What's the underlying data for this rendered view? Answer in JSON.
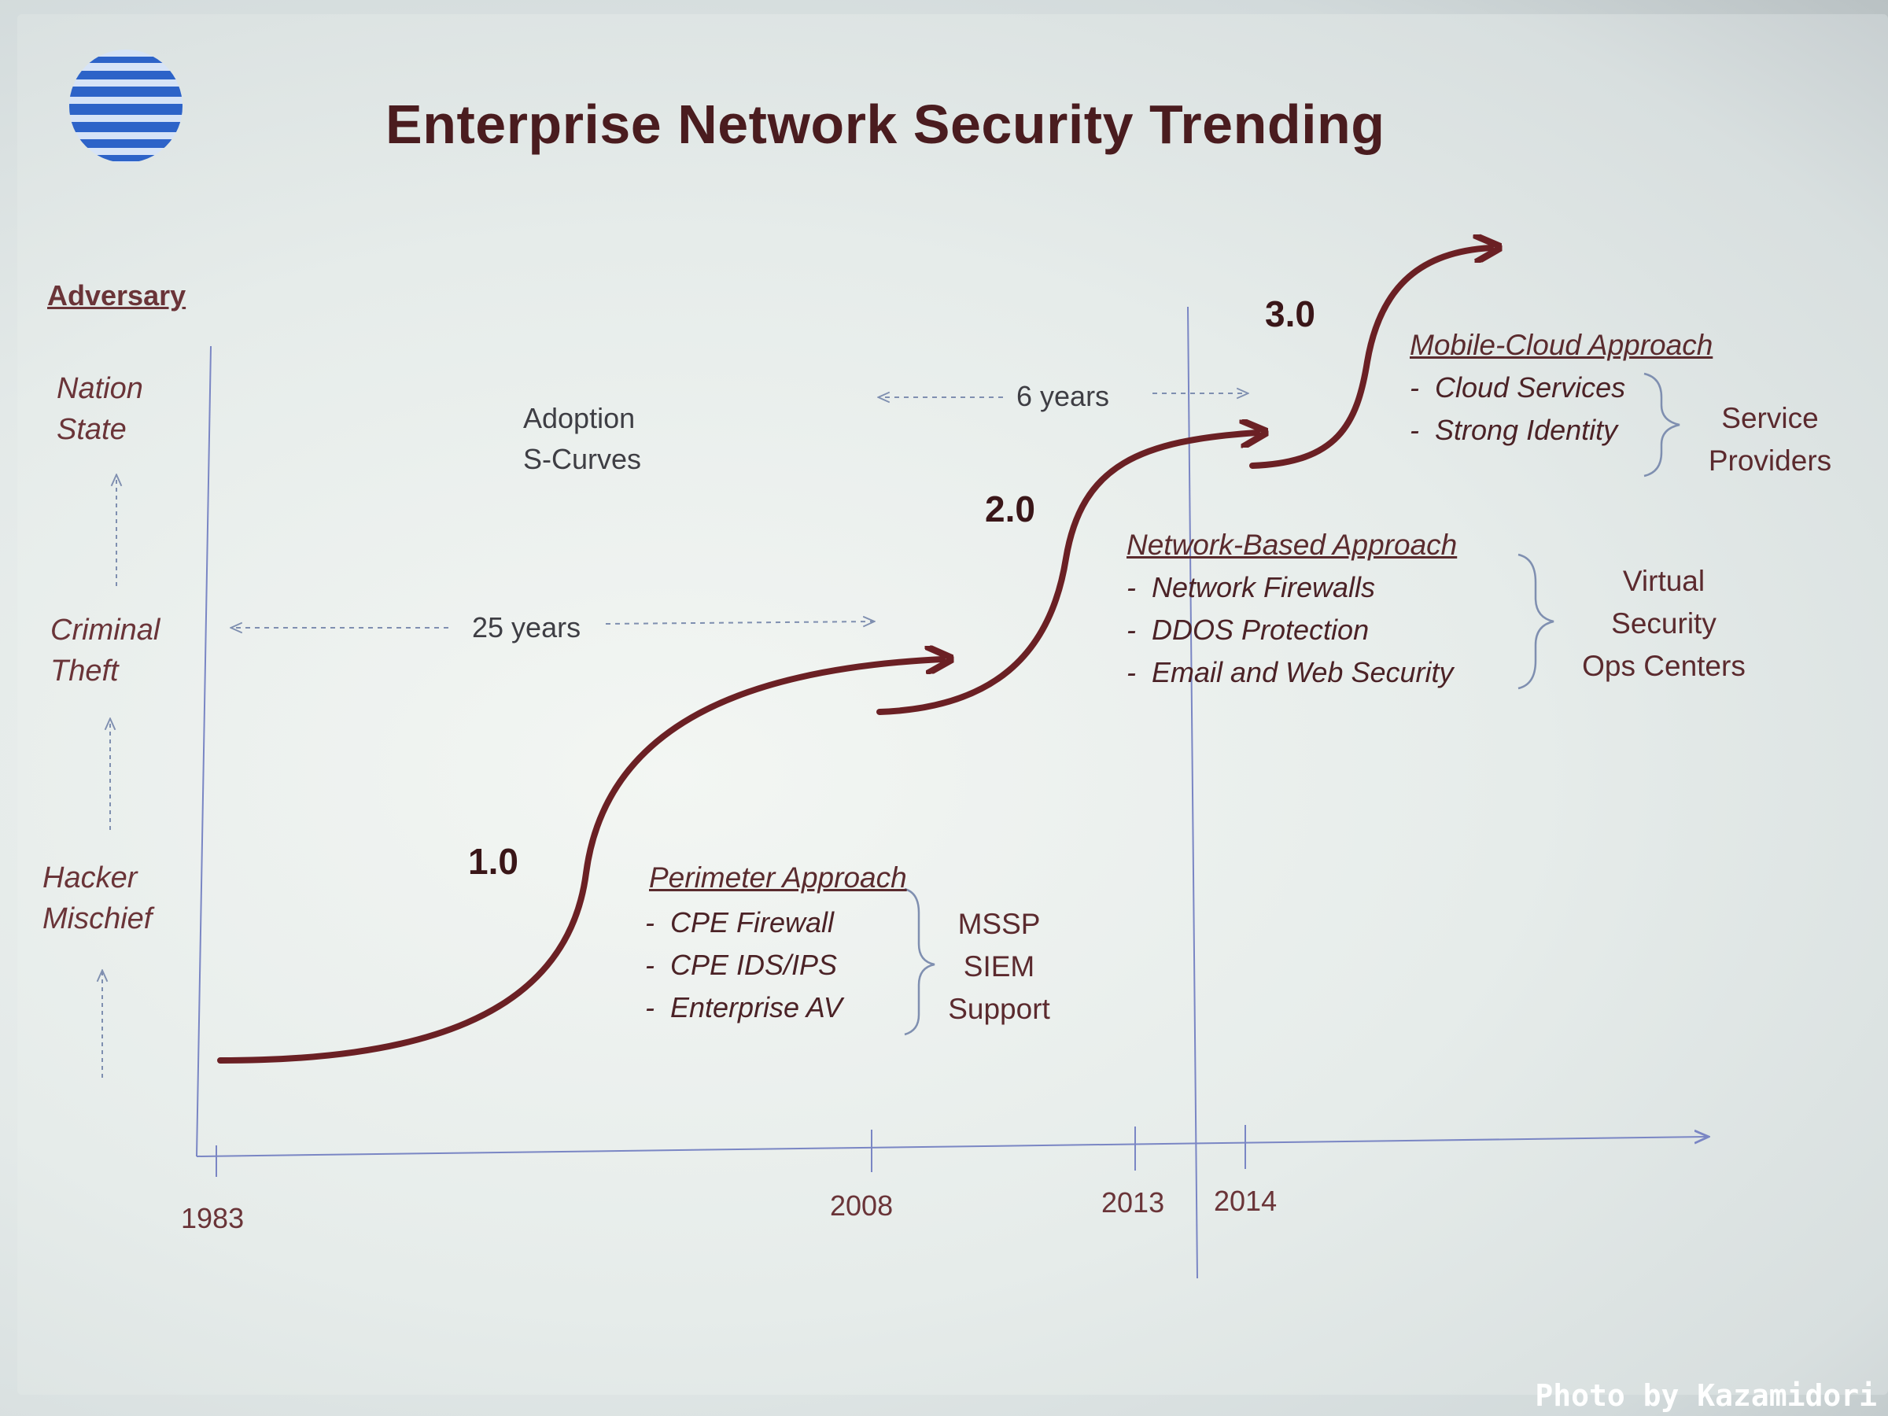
{
  "title": "Enterprise Network Security Trending",
  "adversary": {
    "heading": "Adversary",
    "levels": [
      "Nation\nState",
      "Criminal\nTheft",
      "Hacker\nMischief"
    ]
  },
  "adoption_label": "Adoption\nS-Curves",
  "spans": {
    "long": "25 years",
    "short": "6 years"
  },
  "versions": [
    "1.0",
    "2.0",
    "3.0"
  ],
  "approaches": [
    {
      "heading": "Perimeter Approach",
      "items": [
        "CPE Firewall",
        "CPE IDS/IPS",
        "Enterprise AV"
      ],
      "provider": "MSSP\nSIEM\nSupport"
    },
    {
      "heading": "Network-Based Approach",
      "items": [
        "Network Firewalls",
        "DDOS Protection",
        "Email and Web Security"
      ],
      "provider": "Virtual\nSecurity\nOps Centers"
    },
    {
      "heading": "Mobile-Cloud Approach",
      "items": [
        "Cloud Services",
        "Strong Identity"
      ],
      "provider": "Service\nProviders"
    }
  ],
  "years": [
    "1983",
    "2008",
    "2013",
    "2014"
  ],
  "credit": "Photo by Kazamidori",
  "colors": {
    "curve": "#6b2024",
    "axis": "#7a86c4",
    "title": "#4a1c1f",
    "guide": "#7f8fb0"
  },
  "logo": "globe-logo-icon"
}
